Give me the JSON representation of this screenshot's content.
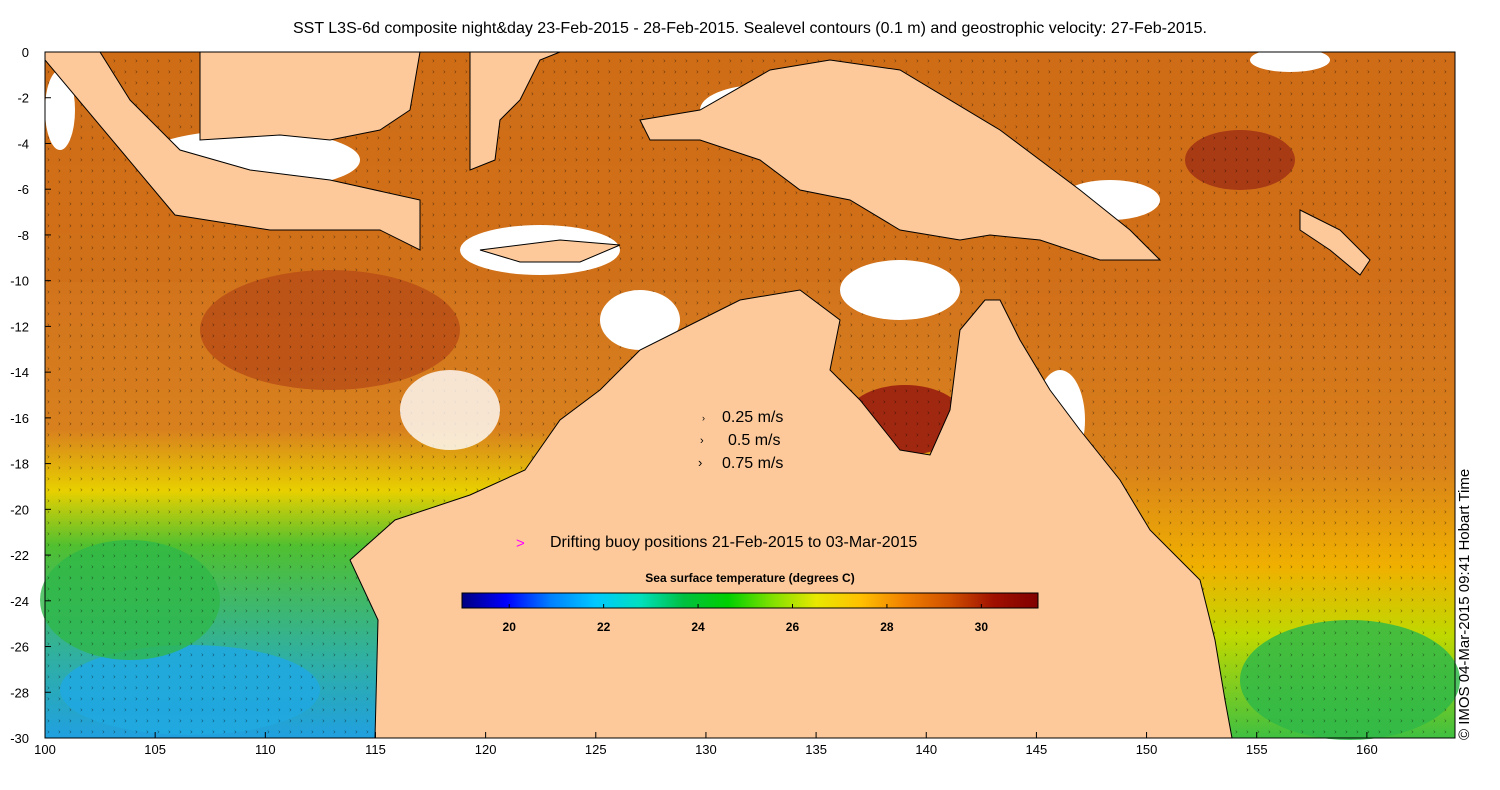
{
  "title": "SST L3S-6d composite night&day 23-Feb-2015 - 28-Feb-2015. Sealevel contours (0.1 m) and geostrophic velocity: 27-Feb-2015.",
  "credit": "© IMOS 04-Mar-2015 09:41 Hobart Time",
  "map": {
    "lon_range": [
      100,
      164
    ],
    "lat_range": [
      -30,
      0
    ],
    "lon_ticks": [
      "100",
      "105",
      "110",
      "115",
      "120",
      "125",
      "130",
      "135",
      "140",
      "145",
      "150",
      "155",
      "160"
    ],
    "lat_ticks": [
      "0",
      "-2",
      "-4",
      "-6",
      "-8",
      "-10",
      "-12",
      "-14",
      "-16",
      "-18",
      "-20",
      "-22",
      "-24",
      "-26",
      "-28",
      "-30"
    ]
  },
  "velocity_legend": [
    {
      "label": "0.25 m/s",
      "glyph": "˃"
    },
    {
      "label": "0.5 m/s",
      "glyph": ">"
    },
    {
      "label": "0.75 m/s",
      "glyph": ">"
    }
  ],
  "buoy_legend": {
    "symbol": ">",
    "label": "Drifting buoy positions 21-Feb-2015 to 03-Mar-2015",
    "color": "#ff00ff"
  },
  "colorbar": {
    "title": "Sea surface temperature (degrees C)",
    "range": [
      19,
      31.2
    ],
    "ticks": [
      "20",
      "22",
      "24",
      "26",
      "28",
      "30"
    ],
    "stops": [
      "#000080",
      "#0000ff",
      "#0080ff",
      "#00c8ff",
      "#00e0c0",
      "#00c040",
      "#00d000",
      "#80e000",
      "#e8e800",
      "#ffc000",
      "#f08000",
      "#d05000",
      "#a01000",
      "#800000"
    ]
  },
  "colors": {
    "land": "#fdc99a",
    "warm_sea": "#d2701a",
    "hot_sea": "#a83c12",
    "mid_sea": "#e89a20",
    "yellow_sea": "#e8d800",
    "green_sea": "#40c040",
    "cool_sea": "#20a8e0",
    "cloud": "#ffffff"
  }
}
